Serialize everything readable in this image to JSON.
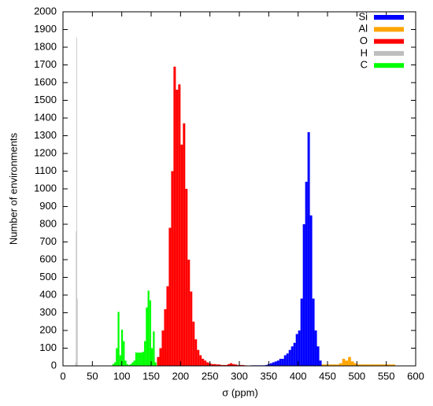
{
  "chart_data": {
    "type": "histogram",
    "xlabel": "σ (ppm)",
    "ylabel": "Number of environments",
    "xlim": [
      0,
      600
    ],
    "xticks": [
      0,
      50,
      100,
      150,
      200,
      250,
      300,
      350,
      400,
      450,
      500,
      550,
      600
    ],
    "ylim": [
      0,
      2000
    ],
    "yticks": [
      0,
      100,
      200,
      300,
      400,
      500,
      600,
      700,
      800,
      900,
      1000,
      1100,
      1200,
      1300,
      1400,
      1500,
      1600,
      1700,
      1800,
      1900,
      2000
    ],
    "legend": "upper right",
    "series": [
      {
        "name": "Si",
        "color": "#0000ff",
        "bins": [
          320,
          324,
          328,
          332,
          336,
          340,
          344,
          348,
          352,
          356,
          360,
          364,
          368,
          372,
          376,
          380,
          384,
          388,
          392,
          396,
          400,
          404,
          408,
          412,
          416,
          420,
          424,
          428,
          432,
          436,
          440
        ],
        "values": [
          3,
          3,
          3,
          3,
          3,
          3,
          5,
          10,
          15,
          20,
          25,
          30,
          40,
          40,
          60,
          70,
          90,
          110,
          130,
          180,
          200,
          380,
          800,
          1040,
          1320,
          850,
          380,
          200,
          110,
          30
        ]
      },
      {
        "name": "Al",
        "color": "#ffa500",
        "bins": [
          390,
          395,
          400,
          405,
          410,
          415,
          420,
          425,
          430,
          435,
          440,
          445,
          450,
          455,
          460,
          465,
          470,
          475,
          480,
          485,
          490,
          495,
          500,
          505,
          510,
          515,
          520,
          525,
          530,
          535,
          540,
          545,
          550,
          555,
          560,
          565
        ],
        "values": [
          8,
          8,
          8,
          8,
          8,
          8,
          8,
          8,
          8,
          8,
          8,
          8,
          8,
          8,
          8,
          8,
          15,
          40,
          30,
          50,
          25,
          15,
          8,
          8,
          8,
          8,
          8,
          8,
          8,
          8,
          8,
          8,
          8,
          8,
          8
        ]
      },
      {
        "name": "O",
        "color": "#ff0000",
        "bins": [
          160,
          164,
          168,
          172,
          176,
          180,
          184,
          188,
          192,
          196,
          200,
          204,
          208,
          212,
          216,
          220,
          224,
          228,
          232,
          236,
          240,
          244,
          248,
          252,
          256,
          260,
          264,
          268,
          272,
          276,
          280,
          284,
          288,
          292,
          296,
          300,
          304,
          308,
          312
        ],
        "values": [
          50,
          100,
          200,
          320,
          450,
          780,
          1100,
          1690,
          1560,
          1590,
          1250,
          1370,
          1000,
          600,
          420,
          250,
          150,
          90,
          60,
          40,
          30,
          20,
          15,
          10,
          10,
          8,
          8,
          5,
          5,
          5,
          10,
          15,
          10,
          8,
          5,
          5,
          5,
          3
        ]
      },
      {
        "name": "H",
        "color": "#bebebe",
        "bins": [
          21,
          22,
          23,
          24,
          25
        ],
        "values": [
          20,
          760,
          1855,
          380
        ]
      },
      {
        "name": "C",
        "color": "#00ff00",
        "bins": [
          84,
          87,
          90,
          93,
          96,
          99,
          102,
          105,
          108,
          111,
          114,
          117,
          120,
          123,
          126,
          129,
          132,
          135,
          138,
          141,
          144,
          147,
          150,
          153,
          156,
          159
        ],
        "values": [
          10,
          20,
          100,
          305,
          60,
          205,
          140,
          30,
          10,
          5,
          10,
          20,
          30,
          75,
          75,
          75,
          75,
          80,
          140,
          330,
          425,
          370,
          100,
          195,
          20
        ]
      }
    ]
  }
}
